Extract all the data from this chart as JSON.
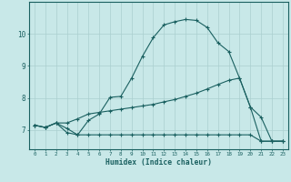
{
  "xlabel": "Humidex (Indice chaleur)",
  "background_color": "#c8e8e8",
  "grid_color": "#aacfcf",
  "line_color": "#1a6060",
  "xlim": [
    -0.5,
    23.5
  ],
  "ylim": [
    6.4,
    11.0
  ],
  "yticks": [
    7,
    8,
    9,
    10
  ],
  "xticks": [
    0,
    1,
    2,
    3,
    4,
    5,
    6,
    7,
    8,
    9,
    10,
    11,
    12,
    13,
    14,
    15,
    16,
    17,
    18,
    19,
    20,
    21,
    22,
    23
  ],
  "line1_x": [
    0,
    1,
    2,
    3,
    4,
    5,
    6,
    7,
    8,
    9,
    10,
    11,
    12,
    13,
    14,
    15,
    16,
    17,
    18,
    19,
    20,
    21,
    22,
    23
  ],
  "line1_y": [
    7.15,
    7.08,
    7.22,
    6.92,
    6.85,
    6.85,
    6.85,
    6.85,
    6.85,
    6.85,
    6.85,
    6.85,
    6.85,
    6.85,
    6.85,
    6.85,
    6.85,
    6.85,
    6.85,
    6.85,
    6.85,
    6.65,
    6.65,
    6.65
  ],
  "line2_x": [
    0,
    1,
    2,
    3,
    4,
    5,
    6,
    7,
    8,
    9,
    10,
    11,
    12,
    13,
    14,
    15,
    16,
    17,
    18,
    19,
    20,
    21,
    22,
    23
  ],
  "line2_y": [
    7.15,
    7.08,
    7.22,
    7.22,
    7.35,
    7.5,
    7.55,
    7.6,
    7.65,
    7.7,
    7.75,
    7.8,
    7.88,
    7.95,
    8.05,
    8.15,
    8.28,
    8.42,
    8.55,
    8.62,
    7.72,
    6.65,
    6.65,
    6.65
  ],
  "line3_x": [
    0,
    1,
    2,
    3,
    4,
    5,
    6,
    7,
    8,
    9,
    10,
    11,
    12,
    13,
    14,
    15,
    16,
    17,
    18,
    19,
    20,
    21,
    22,
    23
  ],
  "line3_y": [
    7.15,
    7.08,
    7.22,
    7.05,
    6.85,
    7.3,
    7.5,
    8.02,
    8.05,
    8.62,
    9.3,
    9.88,
    10.28,
    10.38,
    10.45,
    10.42,
    10.2,
    9.72,
    9.45,
    8.62,
    7.72,
    7.4,
    6.65,
    6.65
  ]
}
